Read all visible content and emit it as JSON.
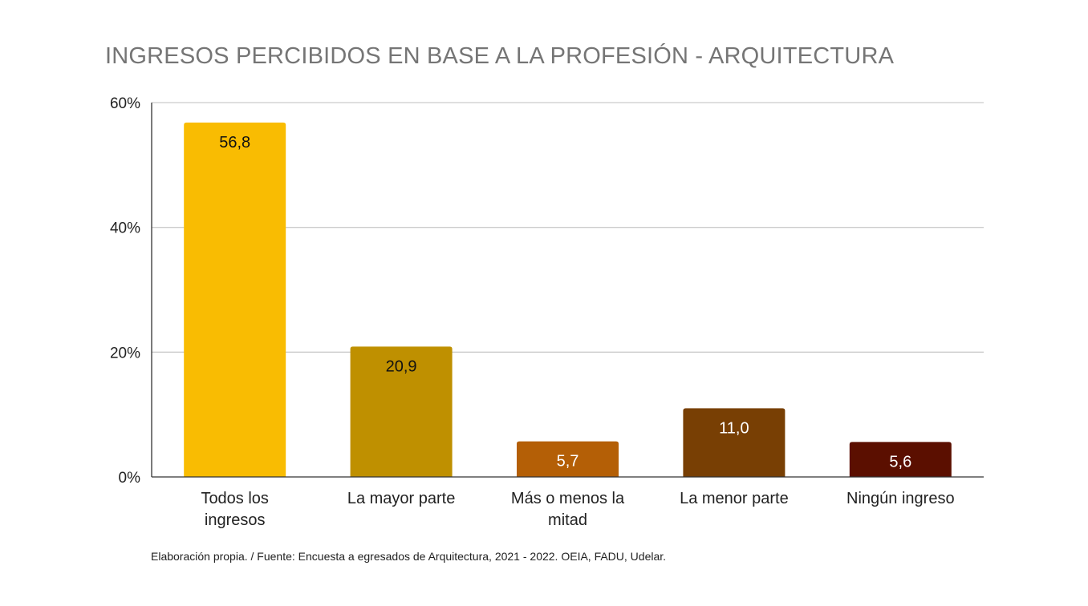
{
  "chart_data": {
    "type": "bar",
    "title": "INGRESOS PERCIBIDOS EN BASE A LA PROFESIÓN - ARQUITECTURA",
    "categories": [
      [
        "Todos los",
        "ingresos"
      ],
      [
        "La mayor parte"
      ],
      [
        "Más o menos la",
        "mitad"
      ],
      [
        "La menor parte"
      ],
      [
        "Ningún ingreso"
      ]
    ],
    "values": [
      56.8,
      20.9,
      5.7,
      11.0,
      5.6
    ],
    "data_labels": [
      "56,8",
      "20,9",
      "5,7",
      "11,0",
      "5,6"
    ],
    "bar_colors": [
      "#f9bc02",
      "#bf9000",
      "#b45f06",
      "#783f04",
      "#5b0f00"
    ],
    "label_colors": [
      "#111111",
      "#111111",
      "#ffffff",
      "#ffffff",
      "#ffffff"
    ],
    "ylim": [
      0,
      60
    ],
    "yticks": [
      0,
      20,
      40,
      60
    ],
    "ytick_labels": [
      "0%",
      "20%",
      "40%",
      "60%"
    ],
    "xlabel": "",
    "ylabel": "",
    "grid": true,
    "legend": "none"
  },
  "footnote": "Elaboración propia. / Fuente: Encuesta a egresados de Arquitectura, 2021 - 2022. OEIA, FADU, Udelar.",
  "colors": {
    "title": "#757575",
    "grid": "#cccccc",
    "axis": "#333333",
    "text": "#222222"
  }
}
